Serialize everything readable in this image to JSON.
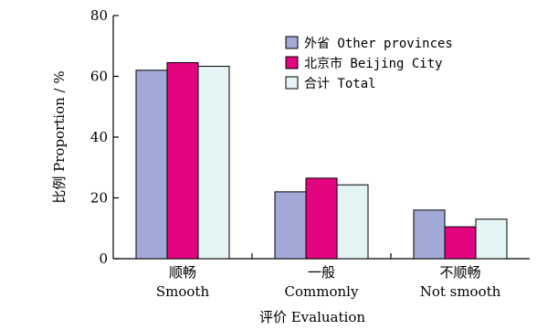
{
  "chart_data": {
    "type": "bar",
    "categories": [
      {
        "zh": "顺畅",
        "en": "Smooth"
      },
      {
        "zh": "一般",
        "en": "Commonly"
      },
      {
        "zh": "不顺畅",
        "en": "Not smooth"
      }
    ],
    "series": [
      {
        "name": "外省 Other provinces",
        "color": "#a3a9d6",
        "values": [
          62,
          22,
          16
        ]
      },
      {
        "name": "北京市 Beijing City",
        "color": "#e2057f",
        "values": [
          64.5,
          26.5,
          10.5
        ]
      },
      {
        "name": "合计 Total",
        "color": "#e4f3f3",
        "values": [
          63.3,
          24.3,
          13
        ]
      }
    ],
    "ylabel": "比例 Proportion / %",
    "xlabel": "评价 Evaluation",
    "ylim": [
      0,
      80
    ],
    "yticks": [
      0,
      20,
      40,
      60,
      80
    ],
    "grid": false,
    "legend_position": "top-right"
  }
}
